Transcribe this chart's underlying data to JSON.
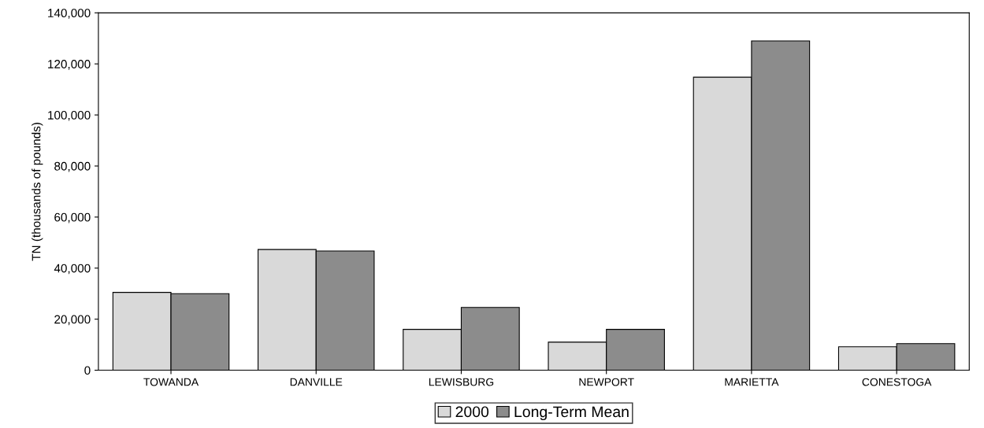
{
  "chart_data": {
    "type": "bar",
    "ylabel": "TN (thousands of pounds)",
    "categories": [
      "TOWANDA",
      "DANVILLE",
      "LEWISBURG",
      "NEWPORT",
      "MARIETTA",
      "CONESTOGA"
    ],
    "series": [
      {
        "name": "2000",
        "color": "#d9d9d9",
        "values": [
          30500,
          47300,
          16000,
          11000,
          114800,
          9200
        ]
      },
      {
        "name": "Long-Term Mean",
        "color": "#8c8c8c",
        "values": [
          30000,
          46700,
          24600,
          16000,
          129000,
          10400
        ]
      }
    ],
    "ylim": [
      0,
      140000
    ],
    "yticks": [
      {
        "value": 0,
        "label": "0"
      },
      {
        "value": 20000,
        "label": "20,000"
      },
      {
        "value": 40000,
        "label": "40,000"
      },
      {
        "value": 60000,
        "label": "60,000"
      },
      {
        "value": 80000,
        "label": "80,000"
      },
      {
        "value": 100000,
        "label": "100,000"
      },
      {
        "value": 120000,
        "label": "120,000"
      },
      {
        "value": 140000,
        "label": "140,000"
      }
    ],
    "grid": false,
    "legend": "bottom"
  }
}
